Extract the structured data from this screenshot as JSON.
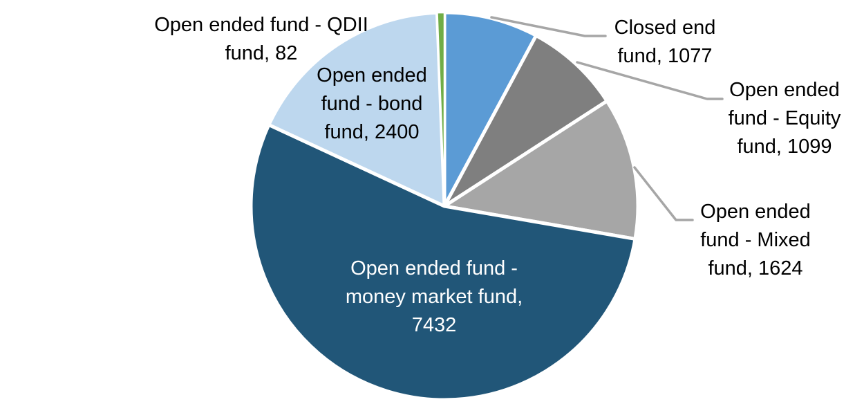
{
  "chart_data": {
    "type": "pie",
    "total": 13714,
    "direction": "clockwise",
    "start_angle_deg": 0,
    "slices": [
      {
        "name": "Closed end fund",
        "value": 1077,
        "color": "#5B9BD5",
        "label_lines": [
          "Closed end",
          "fund, 1077"
        ],
        "label_placement": "outside-right",
        "has_leader_line": true
      },
      {
        "name": "Open ended fund - Equity fund",
        "value": 1099,
        "color": "#7F7F7F",
        "label_lines": [
          "Open ended",
          "fund - Equity",
          "fund, 1099"
        ],
        "label_placement": "outside-right",
        "has_leader_line": true
      },
      {
        "name": "Open ended fund - Mixed fund",
        "value": 1624,
        "color": "#A6A6A6",
        "label_lines": [
          "Open ended",
          "fund - Mixed",
          "fund, 1624"
        ],
        "label_placement": "outside-right",
        "has_leader_line": true
      },
      {
        "name": "Open ended fund - money market fund",
        "value": 7432,
        "color": "#215678",
        "label_lines": [
          "Open ended fund -",
          "money market fund,",
          "7432"
        ],
        "label_placement": "inside",
        "label_color": "#FFFFFF",
        "has_leader_line": false
      },
      {
        "name": "Open ended fund - bond fund",
        "value": 2400,
        "color": "#BDD7EE",
        "label_lines": [
          "Open ended",
          "fund - bond",
          "fund, 2400"
        ],
        "label_placement": "inside",
        "has_leader_line": false
      },
      {
        "name": "Open ended fund - QDII fund",
        "value": 82,
        "color": "#70AD47",
        "label_lines": [
          "Open ended fund - QDII",
          "fund, 82"
        ],
        "label_placement": "outside-left",
        "has_leader_line": false
      }
    ],
    "colors": {
      "slice_border": "#FFFFFF",
      "leader_line": "#A6A6A6",
      "outside_label_text": "#000000",
      "inside_label_text": "#FFFFFF",
      "background": "#FFFFFF"
    }
  }
}
